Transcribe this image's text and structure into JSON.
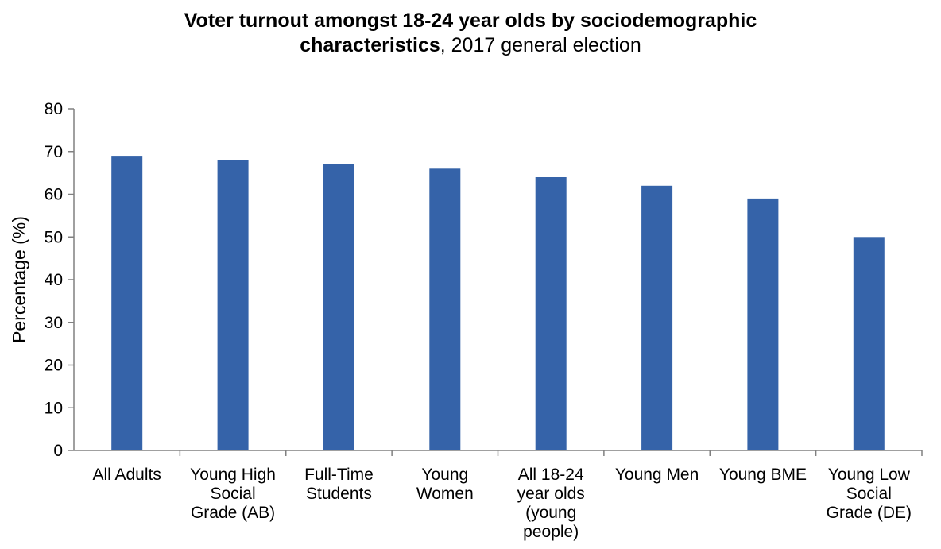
{
  "chart_data": {
    "type": "bar",
    "title": {
      "line1": "Voter turnout amongst 18-24 year olds by sociodemographic",
      "line2_bold": "characteristics",
      "line2_rest": ", 2017 general election"
    },
    "ylabel": "Percentage (%)",
    "xlabel": "",
    "ylim": [
      0,
      80
    ],
    "yticks": [
      0,
      10,
      20,
      30,
      40,
      50,
      60,
      70,
      80
    ],
    "grid": false,
    "legend": "none",
    "categories": [
      [
        "All Adults"
      ],
      [
        "Young High",
        "Social",
        "Grade (AB)"
      ],
      [
        "Full-Time",
        "Students"
      ],
      [
        "Young",
        "Women"
      ],
      [
        "All 18-24",
        "year olds",
        "(young",
        "people)"
      ],
      [
        "Young Men"
      ],
      [
        "Young BME"
      ],
      [
        "Young Low",
        "Social",
        "Grade (DE)"
      ]
    ],
    "values": [
      69,
      68,
      67,
      66,
      64,
      62,
      59,
      50
    ],
    "colors": {
      "bar": "#3563a9",
      "axis": "#808080"
    }
  }
}
